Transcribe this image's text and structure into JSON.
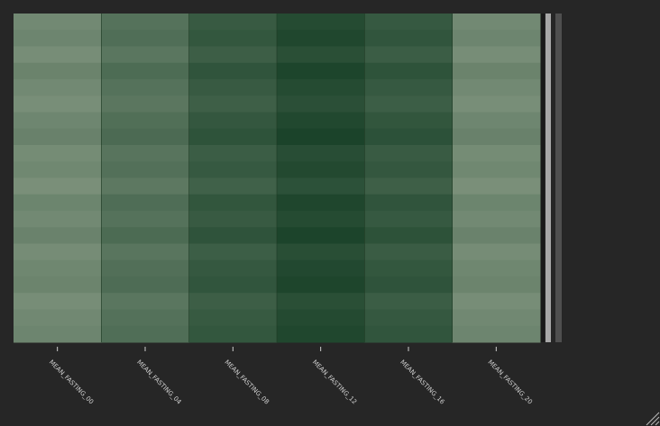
{
  "chart_data": {
    "type": "heatmap",
    "categories": [
      "MEAN_FASTING_00",
      "MEAN_FASTING_04",
      "MEAN_FASTING_08",
      "MEAN_FASTING_12",
      "MEAN_FASTING_16",
      "MEAN_FASTING_20"
    ],
    "values": [
      [
        0.1,
        0.4,
        0.7,
        0.9,
        0.72,
        0.1
      ],
      [
        0.15,
        0.45,
        0.75,
        0.95,
        0.77,
        0.15
      ],
      [
        0.05,
        0.35,
        0.65,
        0.85,
        0.67,
        0.05
      ],
      [
        0.18,
        0.48,
        0.78,
        0.98,
        0.8,
        0.18
      ],
      [
        0.1,
        0.4,
        0.7,
        0.9,
        0.72,
        0.1
      ],
      [
        0.04,
        0.34,
        0.64,
        0.84,
        0.66,
        0.04
      ],
      [
        0.14,
        0.44,
        0.74,
        0.94,
        0.76,
        0.14
      ],
      [
        0.2,
        0.5,
        0.8,
        1.0,
        0.82,
        0.2
      ],
      [
        0.07,
        0.37,
        0.67,
        0.87,
        0.69,
        0.07
      ],
      [
        0.12,
        0.42,
        0.72,
        0.92,
        0.74,
        0.12
      ],
      [
        0.02,
        0.32,
        0.62,
        0.82,
        0.64,
        0.02
      ],
      [
        0.16,
        0.46,
        0.76,
        0.96,
        0.78,
        0.16
      ],
      [
        0.1,
        0.4,
        0.7,
        0.9,
        0.72,
        0.1
      ],
      [
        0.19,
        0.49,
        0.79,
        0.99,
        0.81,
        0.19
      ],
      [
        0.06,
        0.36,
        0.66,
        0.86,
        0.68,
        0.06
      ],
      [
        0.13,
        0.43,
        0.73,
        0.93,
        0.75,
        0.13
      ],
      [
        0.17,
        0.47,
        0.77,
        0.97,
        0.79,
        0.17
      ],
      [
        0.05,
        0.35,
        0.65,
        0.85,
        0.67,
        0.05
      ],
      [
        0.11,
        0.41,
        0.71,
        0.91,
        0.73,
        0.11
      ],
      [
        0.15,
        0.45,
        0.75,
        0.95,
        0.77,
        0.15
      ]
    ],
    "clim": [
      0,
      1
    ],
    "colormap": [
      "#7c917b",
      "#1b432a"
    ]
  }
}
